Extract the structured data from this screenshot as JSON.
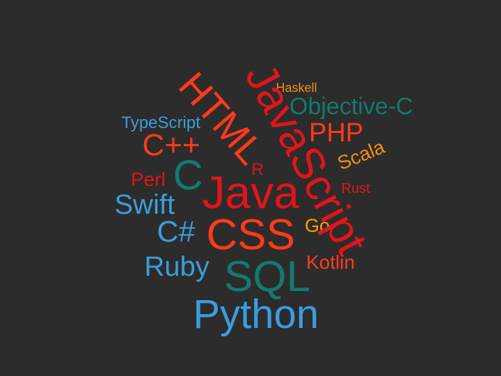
{
  "colors": {
    "background": "#2c2c2c",
    "red_orange": "#ff3a1a",
    "red": "#e0151b",
    "teal": "#127a6f",
    "blue": "#3b9ddb",
    "orange": "#f28c12",
    "gold": "#f5a300"
  },
  "words": [
    {
      "key": "python",
      "text": "Python",
      "color": "#3b9ddb"
    },
    {
      "key": "java",
      "text": "Java",
      "color": "#e0151b"
    },
    {
      "key": "javascript",
      "text": "JavaScript",
      "color": "#e0151b"
    },
    {
      "key": "html",
      "text": "HTML",
      "color": "#ff3a1a"
    },
    {
      "key": "css",
      "text": "CSS",
      "color": "#ff3a1a"
    },
    {
      "key": "sql",
      "text": "SQL",
      "color": "#127a6f"
    },
    {
      "key": "c",
      "text": "C",
      "color": "#127a6f"
    },
    {
      "key": "cpp",
      "text": "C++",
      "color": "#ff3a1a"
    },
    {
      "key": "csharp",
      "text": "C#",
      "color": "#3b9ddb"
    },
    {
      "key": "php",
      "text": "PHP",
      "color": "#ff3a1a"
    },
    {
      "key": "objective-c",
      "text": "Objective-C",
      "color": "#127a6f"
    },
    {
      "key": "swift",
      "text": "Swift",
      "color": "#3b9ddb"
    },
    {
      "key": "ruby",
      "text": "Ruby",
      "color": "#3b9ddb"
    },
    {
      "key": "kotlin",
      "text": "Kotlin",
      "color": "#ff3a1a"
    },
    {
      "key": "typescript",
      "text": "TypeScript",
      "color": "#3b9ddb"
    },
    {
      "key": "scala",
      "text": "Scala",
      "color": "#f28c12"
    },
    {
      "key": "go",
      "text": "Go",
      "color": "#f5a300"
    },
    {
      "key": "perl",
      "text": "Perl",
      "color": "#e0151b"
    },
    {
      "key": "r",
      "text": "R",
      "color": "#e0151b"
    },
    {
      "key": "rust",
      "text": "Rust",
      "color": "#e0151b"
    },
    {
      "key": "haskell",
      "text": "Haskell",
      "color": "#f28c12"
    }
  ]
}
